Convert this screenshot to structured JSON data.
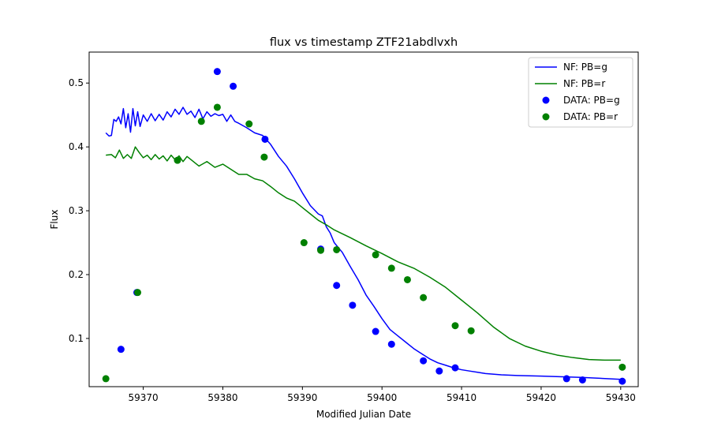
{
  "chart_data": {
    "type": "line",
    "title": "flux vs timestamp ZTF21abdlvxh",
    "xlabel": "Modified Julian Date",
    "ylabel": "Flux",
    "xlim": [
      59363.2,
      59432.2
    ],
    "ylim": [
      0.0245,
      0.5485
    ],
    "xticks": [
      59370,
      59380,
      59390,
      59400,
      59410,
      59420,
      59430
    ],
    "yticks": [
      0.1,
      0.2,
      0.3,
      0.4,
      0.5
    ],
    "grid": false,
    "legend_position": "top-right",
    "colors": {
      "g": "#0000ff",
      "r": "#008000"
    },
    "legend": [
      "NF: PB=g",
      "NF: PB=r",
      "DATA: PB=g",
      "DATA: PB=r"
    ],
    "line_series": [
      {
        "name": "NF: PB=g",
        "color": "#0000ff",
        "x": [
          59365.3,
          59365.7,
          59366.0,
          59366.3,
          59366.6,
          59366.9,
          59367.2,
          59367.5,
          59367.8,
          59368.1,
          59368.4,
          59368.7,
          59369.0,
          59369.3,
          59369.6,
          59370.0,
          59370.5,
          59371.0,
          59371.5,
          59372.0,
          59372.5,
          59373.0,
          59373.5,
          59374.0,
          59374.5,
          59375.0,
          59375.5,
          59376.0,
          59376.5,
          59377.0,
          59377.5,
          59378.0,
          59378.5,
          59379.0,
          59379.5,
          59380.0,
          59380.5,
          59381.0,
          59381.5,
          59382.0,
          59383.0,
          59384.0,
          59385.0,
          59386.0,
          59387.0,
          59388.0,
          59389.0,
          59390.0,
          59391.0,
          59392.0,
          59392.5,
          59393.0,
          59393.5,
          59394.0,
          59395.0,
          59396.0,
          59397.0,
          59398.0,
          59399.0,
          59400.0,
          59401.0,
          59402.0,
          59403.0,
          59404.0,
          59405.0,
          59406.0,
          59407.0,
          59408.0,
          59409.0,
          59410.0,
          59411.0,
          59412.0,
          59413.0,
          59415.0,
          59417.0,
          59420.0,
          59425.0,
          59430.0
        ],
        "y": [
          0.422,
          0.417,
          0.418,
          0.443,
          0.44,
          0.447,
          0.436,
          0.46,
          0.43,
          0.452,
          0.423,
          0.46,
          0.433,
          0.455,
          0.432,
          0.45,
          0.44,
          0.452,
          0.441,
          0.451,
          0.442,
          0.455,
          0.447,
          0.459,
          0.451,
          0.462,
          0.451,
          0.456,
          0.446,
          0.459,
          0.444,
          0.455,
          0.448,
          0.452,
          0.449,
          0.451,
          0.44,
          0.45,
          0.44,
          0.437,
          0.43,
          0.422,
          0.418,
          0.404,
          0.385,
          0.37,
          0.35,
          0.328,
          0.308,
          0.295,
          0.292,
          0.275,
          0.265,
          0.25,
          0.235,
          0.213,
          0.192,
          0.168,
          0.15,
          0.131,
          0.114,
          0.104,
          0.094,
          0.084,
          0.076,
          0.068,
          0.062,
          0.058,
          0.054,
          0.051,
          0.049,
          0.047,
          0.045,
          0.043,
          0.042,
          0.041,
          0.039,
          0.036
        ]
      },
      {
        "name": "NF: PB=r",
        "color": "#008000",
        "x": [
          59365.3,
          59366.0,
          59366.5,
          59367.0,
          59367.5,
          59368.0,
          59368.5,
          59369.0,
          59369.5,
          59370.0,
          59370.5,
          59371.0,
          59371.5,
          59372.0,
          59372.5,
          59373.0,
          59373.5,
          59374.0,
          59374.5,
          59375.0,
          59375.5,
          59376.0,
          59377.0,
          59378.0,
          59379.0,
          59380.0,
          59381.0,
          59382.0,
          59383.0,
          59384.0,
          59385.0,
          59386.0,
          59387.0,
          59388.0,
          59389.0,
          59390.0,
          59391.0,
          59392.0,
          59393.0,
          59394.0,
          59396.0,
          59398.0,
          59400.0,
          59402.0,
          59404.0,
          59406.0,
          59408.0,
          59410.0,
          59412.0,
          59414.0,
          59416.0,
          59418.0,
          59420.0,
          59422.0,
          59424.0,
          59426.0,
          59428.0,
          59430.0
        ],
        "y": [
          0.387,
          0.388,
          0.383,
          0.395,
          0.382,
          0.388,
          0.382,
          0.4,
          0.391,
          0.383,
          0.387,
          0.38,
          0.388,
          0.381,
          0.386,
          0.378,
          0.387,
          0.38,
          0.386,
          0.377,
          0.385,
          0.38,
          0.37,
          0.377,
          0.368,
          0.373,
          0.365,
          0.357,
          0.357,
          0.35,
          0.347,
          0.338,
          0.328,
          0.32,
          0.315,
          0.305,
          0.295,
          0.285,
          0.278,
          0.27,
          0.258,
          0.245,
          0.233,
          0.22,
          0.21,
          0.196,
          0.18,
          0.16,
          0.14,
          0.118,
          0.1,
          0.088,
          0.08,
          0.074,
          0.07,
          0.067,
          0.066,
          0.066
        ]
      }
    ],
    "scatter_series": [
      {
        "name": "DATA: PB=g",
        "color": "#0000ff",
        "x": [
          59367.2,
          59369.2,
          59379.3,
          59381.3,
          59385.3,
          59392.3,
          59394.3,
          59396.3,
          59399.2,
          59401.2,
          59405.2,
          59407.2,
          59409.2,
          59423.2,
          59425.2,
          59430.2
        ],
        "y": [
          0.083,
          0.172,
          0.518,
          0.495,
          0.412,
          0.24,
          0.183,
          0.152,
          0.111,
          0.091,
          0.065,
          0.049,
          0.054,
          0.037,
          0.035,
          0.033
        ]
      },
      {
        "name": "DATA: PB=r",
        "color": "#008000",
        "x": [
          59365.3,
          59369.3,
          59374.3,
          59377.3,
          59379.3,
          59383.3,
          59385.2,
          59390.2,
          59392.3,
          59394.3,
          59399.2,
          59401.2,
          59403.2,
          59405.2,
          59409.2,
          59411.2,
          59430.2
        ],
        "y": [
          0.037,
          0.172,
          0.379,
          0.44,
          0.462,
          0.436,
          0.384,
          0.25,
          0.238,
          0.239,
          0.231,
          0.21,
          0.192,
          0.164,
          0.12,
          0.112,
          0.055
        ]
      }
    ]
  }
}
